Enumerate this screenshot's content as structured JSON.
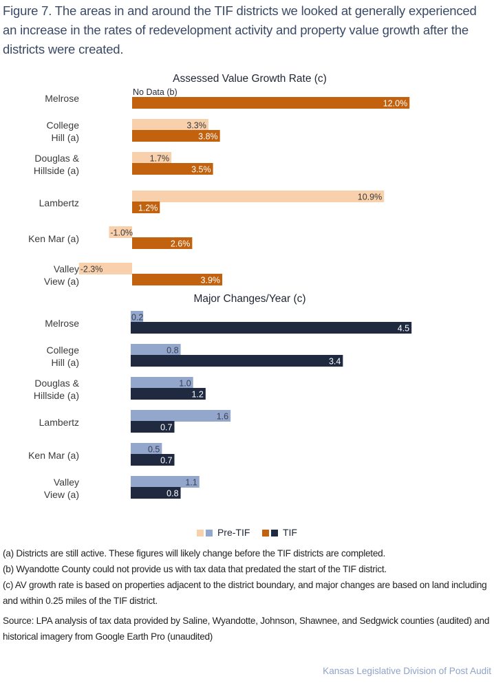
{
  "figure_title": "Figure 7. The areas in and around the TIF districts we looked at generally experienced an increase in the rates of redevelopment activity and property value growth after the districts were created.",
  "colors": {
    "av_pre": "#f8d0ac",
    "av_tif": "#c2620e",
    "mc_pre": "#93a6cb",
    "mc_tif": "#1f2a40"
  },
  "chart_data": [
    {
      "type": "bar",
      "orientation": "horizontal",
      "title": "Assessed Value Growth Rate (c)",
      "categories": [
        [
          "Melrose"
        ],
        [
          "College",
          "Hill (a)"
        ],
        [
          "Douglas &",
          "Hillside (a)"
        ],
        [
          "Lambertz"
        ],
        [
          "Ken Mar (a)"
        ],
        [
          "Valley",
          "View (a)"
        ]
      ],
      "series": [
        {
          "name": "Pre-TIF",
          "values": [
            null,
            3.3,
            1.7,
            10.9,
            -1.0,
            -2.3
          ],
          "labels": [
            "No Data (b)",
            "3.3%",
            "1.7%",
            "10.9%",
            "-1.0%",
            "-2.3%"
          ]
        },
        {
          "name": "TIF",
          "values": [
            12.0,
            3.8,
            3.5,
            1.2,
            2.6,
            3.9
          ],
          "labels": [
            "12.0%",
            "3.8%",
            "3.5%",
            "1.2%",
            "2.6%",
            "3.9%"
          ]
        }
      ],
      "unit": "%",
      "grid": false
    },
    {
      "type": "bar",
      "orientation": "horizontal",
      "title": "Major Changes/Year (c)",
      "categories": [
        [
          "Melrose"
        ],
        [
          "College",
          "Hill (a)"
        ],
        [
          "Douglas &",
          "Hillside (a)"
        ],
        [
          "Lambertz"
        ],
        [
          "Ken Mar (a)"
        ],
        [
          "Valley",
          "View (a)"
        ]
      ],
      "series": [
        {
          "name": "Pre-TIF",
          "values": [
            0.2,
            0.8,
            1.0,
            1.6,
            0.5,
            1.1
          ],
          "labels": [
            "0.2",
            "0.8",
            "1.0",
            "1.6",
            "0.5",
            "1.1"
          ]
        },
        {
          "name": "TIF",
          "values": [
            4.5,
            3.4,
            1.2,
            0.7,
            0.7,
            0.8
          ],
          "labels": [
            "4.5",
            "3.4",
            "1.2",
            "0.7",
            "0.7",
            "0.8"
          ]
        }
      ],
      "grid": false
    }
  ],
  "legend": {
    "pre_label": "Pre-TIF",
    "tif_label": "TIF",
    "placement": "bottom-center"
  },
  "notes": [
    "(a) Districts are still active. These figures will likely change before the TIF districts are completed.",
    "(b) Wyandotte County could not provide us with tax data that predated the start of the TIF district.",
    "(c) AV growth rate is based on properties adjacent to the district boundary, and major changes are based on land including and within 0.25 miles of the TIF district."
  ],
  "source": "Source: LPA analysis of tax data provided by Saline, Wyandotte, Johnson, Shawnee, and Sedgwick counties (audited) and historical imagery from Google Earth Pro (unaudited)",
  "credit": "Kansas Legislative Division of Post Audit"
}
